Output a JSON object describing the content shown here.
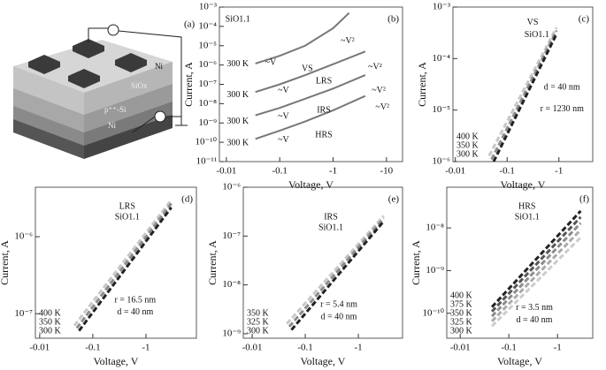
{
  "schematic": {
    "label": "(a)",
    "layers": [
      "Ni",
      "SiOx",
      "p⁺⁺-Si",
      "Ni"
    ]
  },
  "chart_data": [
    {
      "type": "line",
      "style": "solid",
      "panel_label": "(b)",
      "xlabel": "Voltage, V",
      "ylabel": "Current, A",
      "xscale": "log",
      "yscale": "log",
      "xlim": [
        -0.0074,
        -20
      ],
      "ylim": [
        1e-11,
        0.001
      ],
      "xticks": [
        -0.01,
        -0.1,
        -1,
        -10
      ],
      "yticks": [
        {
          "value": 0.001,
          "label": "10⁻³"
        },
        {
          "value": 0.0001,
          "label": "10⁻⁴"
        },
        {
          "value": 1e-05,
          "label": "10⁻⁵"
        },
        {
          "value": 1e-06,
          "label": "10⁻⁶"
        },
        {
          "value": 1e-07,
          "label": "10⁻⁷"
        },
        {
          "value": 1e-08,
          "label": "10⁻⁸"
        },
        {
          "value": 1e-09,
          "label": "10⁻⁹"
        },
        {
          "value": 1e-10,
          "label": "10⁻¹⁰"
        },
        {
          "value": 1e-11,
          "label": "10⁻¹¹"
        }
      ],
      "series": [
        {
          "name": "VS",
          "color": "#777777",
          "x": [
            -0.035,
            -0.1,
            -0.3,
            -1,
            -2
          ],
          "values": [
            1.2e-06,
            3e-06,
            1e-05,
            8e-05,
            0.0005
          ]
        },
        {
          "name": "LRS",
          "color": "#777777",
          "x": [
            -0.035,
            -0.1,
            -0.3,
            -1,
            -4
          ],
          "values": [
            4e-08,
            1e-07,
            3e-07,
            1.1e-06,
            5e-06
          ]
        },
        {
          "name": "IRS",
          "color": "#777777",
          "x": [
            -0.035,
            -0.1,
            -0.3,
            -1,
            -4
          ],
          "values": [
            2.5e-09,
            6e-09,
            1.8e-08,
            6e-08,
            3e-07
          ]
        },
        {
          "name": "HRS",
          "color": "#777777",
          "x": [
            -0.035,
            -0.1,
            -0.3,
            -1,
            -4
          ],
          "values": [
            1.5e-10,
            4e-10,
            1.2e-09,
            4.5e-09,
            2.5e-08
          ]
        }
      ],
      "annotations": [
        "SiO1.1",
        "VS",
        "~V²",
        "~V",
        "300 K",
        "300 K",
        "300 K",
        "300 K",
        "LRS",
        "~V²",
        "~V",
        "~V²",
        "IRS",
        "~V",
        "~V²",
        "HRS",
        "~V"
      ]
    },
    {
      "type": "line",
      "style": "dashed",
      "panel_label": "(c)",
      "xlabel": "Voltage, V",
      "ylabel": "Current, A",
      "xscale": "log",
      "yscale": "log",
      "xlim": [
        -0.009,
        -4.5
      ],
      "ylim": [
        1e-06,
        0.001
      ],
      "xticks": [
        -0.01,
        -0.1,
        -1
      ],
      "yticks": [
        {
          "value": 0.001,
          "label": "10⁻³"
        },
        {
          "value": 0.0001,
          "label": "10⁻⁴"
        },
        {
          "value": 1e-05,
          "label": "10⁻⁵"
        },
        {
          "value": 1e-06,
          "label": "10⁻⁶"
        }
      ],
      "series": [
        {
          "name": "400 K",
          "color": "#c8c8c8",
          "x": [
            -0.045,
            -0.9
          ],
          "values": [
            1.3e-06,
            0.0004
          ]
        },
        {
          "name": "350 K",
          "color": "#8c8c8c",
          "x": [
            -0.05,
            -0.9
          ],
          "values": [
            1.1e-06,
            0.00035
          ]
        },
        {
          "name": "300 K",
          "color": "#222222",
          "x": [
            -0.055,
            -0.9
          ],
          "values": [
            1e-06,
            0.0003
          ]
        }
      ],
      "annotations": [
        "VS",
        "SiO1.1",
        "d = 40 nm",
        "r = 1230 nm"
      ]
    },
    {
      "type": "line",
      "style": "dashed",
      "panel_label": "(d)",
      "xlabel": "Voltage, V",
      "ylabel": "Current, A",
      "xscale": "log",
      "yscale": "log",
      "xlim": [
        -0.0083,
        -8.9
      ],
      "ylim": [
        4.8e-08,
        4.4e-06
      ],
      "xticks": [
        -0.01,
        -0.1,
        -1
      ],
      "yticks": [
        {
          "value": 1e-07,
          "label": "10⁻⁷"
        },
        {
          "value": 1e-06,
          "label": "10⁻⁶"
        }
      ],
      "series": [
        {
          "name": "400 K",
          "color": "#c8c8c8",
          "x": [
            -0.045,
            -3
          ],
          "values": [
            7e-08,
            3e-06
          ]
        },
        {
          "name": "350 K",
          "color": "#8c8c8c",
          "x": [
            -0.05,
            -3
          ],
          "values": [
            6.5e-08,
            2.7e-06
          ]
        },
        {
          "name": "300 K",
          "color": "#222222",
          "x": [
            -0.055,
            -3
          ],
          "values": [
            6e-08,
            2.4e-06
          ]
        }
      ],
      "annotations": [
        "LRS",
        "SiO1.1",
        "r = 16.5 nm",
        "d = 40 nm"
      ]
    },
    {
      "type": "line",
      "style": "dashed",
      "panel_label": "(e)",
      "xlabel": "Voltage, V",
      "ylabel": "Current, A",
      "xscale": "log",
      "yscale": "log",
      "xlim": [
        -0.0068,
        -6.8
      ],
      "ylim": [
        8.1e-10,
        1e-06
      ],
      "xticks": [
        -0.01,
        -0.1,
        -1
      ],
      "yticks": [
        {
          "value": 1e-09,
          "label": "10⁻⁹"
        },
        {
          "value": 1e-08,
          "label": "10⁻⁸"
        },
        {
          "value": 1e-07,
          "label": "10⁻⁷"
        },
        {
          "value": 1e-06,
          "label": "10⁻⁶"
        }
      ],
      "series": [
        {
          "name": "350 K",
          "color": "#c8c8c8",
          "x": [
            -0.045,
            -3
          ],
          "values": [
            1.6e-09,
            2.6e-07
          ]
        },
        {
          "name": "325 K",
          "color": "#8c8c8c",
          "x": [
            -0.05,
            -3
          ],
          "values": [
            1.4e-09,
            2.3e-07
          ]
        },
        {
          "name": "300 K",
          "color": "#222222",
          "x": [
            -0.055,
            -3
          ],
          "values": [
            1.2e-09,
            2e-07
          ]
        }
      ],
      "annotations": [
        "IRS",
        "SiO1.1",
        "r = 5.4 nm",
        "d = 40 nm"
      ]
    },
    {
      "type": "line",
      "style": "dashed",
      "panel_label": "(f)",
      "xlabel": "Voltage, V",
      "ylabel": "Current, A",
      "xscale": "log",
      "yscale": "log",
      "xlim": [
        -0.0053,
        -5.3
      ],
      "ylim": [
        2.6e-11,
        9e-08
      ],
      "xticks": [
        -0.01,
        -0.1,
        -1
      ],
      "yticks": [
        {
          "value": 1e-10,
          "label": "10⁻¹⁰"
        },
        {
          "value": 1e-09,
          "label": "10⁻⁹"
        },
        {
          "value": 1e-08,
          "label": "10⁻⁸"
        }
      ],
      "series": [
        {
          "name": "400 K",
          "color": "#222222",
          "x": [
            -0.045,
            -3
          ],
          "values": [
            1.4e-10,
            2.5e-08
          ]
        },
        {
          "name": "375 K",
          "color": "#555555",
          "x": [
            -0.045,
            -3
          ],
          "values": [
            1.1e-10,
            1.8e-08
          ]
        },
        {
          "name": "350 K",
          "color": "#8c8c8c",
          "x": [
            -0.045,
            -3
          ],
          "values": [
            8.5e-11,
            1.3e-08
          ]
        },
        {
          "name": "325 K",
          "color": "#aaaaaa",
          "x": [
            -0.045,
            -3
          ],
          "values": [
            6.5e-11,
            9e-09
          ]
        },
        {
          "name": "300 K",
          "color": "#cccccc",
          "x": [
            -0.045,
            -3
          ],
          "values": [
            5e-11,
            6e-09
          ]
        }
      ],
      "annotations": [
        "HRS",
        "SiO1.1",
        "r = 3.5 nm",
        "d = 40 nm"
      ]
    }
  ]
}
